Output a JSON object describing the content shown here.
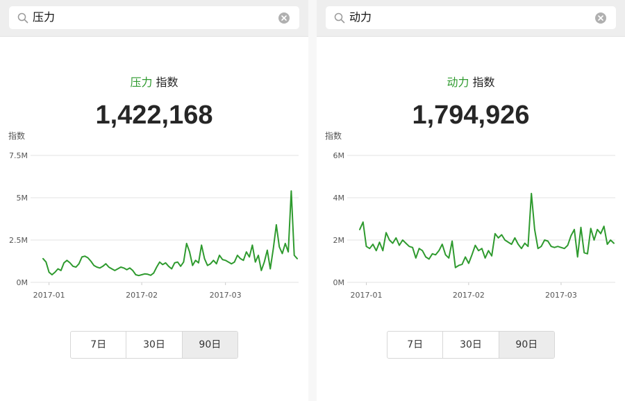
{
  "panels": [
    {
      "search": {
        "query": "压力"
      },
      "title": {
        "keyword": "压力",
        "suffix": " 指数"
      },
      "value": "1,422,168",
      "tabs": [
        {
          "label": "7日",
          "active": false
        },
        {
          "label": "30日",
          "active": false
        },
        {
          "label": "90日",
          "active": true
        }
      ]
    },
    {
      "search": {
        "query": "动力"
      },
      "title": {
        "keyword": "动力",
        "suffix": " 指数"
      },
      "value": "1,794,926",
      "tabs": [
        {
          "label": "7日",
          "active": false
        },
        {
          "label": "30日",
          "active": false
        },
        {
          "label": "90日",
          "active": true
        }
      ]
    }
  ],
  "colors": {
    "line": "#2e9a2e",
    "keyword": "#2e9a2e",
    "grid": "#e3e3e3",
    "axis_text": "#555555"
  },
  "chart_data": [
    {
      "type": "line",
      "ylabel": "指数",
      "ylim": [
        0,
        7500000
      ],
      "yticks": [
        0,
        2500000,
        5000000,
        7500000
      ],
      "yticklabels": [
        "0M",
        "2.5M",
        "5M",
        "7.5M"
      ],
      "xticklabels": [
        {
          "index": 2,
          "label": "2017-01"
        },
        {
          "index": 33,
          "label": "2017-02"
        },
        {
          "index": 61,
          "label": "2017-03"
        }
      ],
      "series": [
        {
          "values": [
            1400000,
            1200000,
            600000,
            450000,
            600000,
            800000,
            700000,
            1150000,
            1300000,
            1150000,
            950000,
            900000,
            1100000,
            1500000,
            1550000,
            1450000,
            1250000,
            1000000,
            900000,
            850000,
            950000,
            1100000,
            900000,
            800000,
            700000,
            800000,
            900000,
            850000,
            750000,
            850000,
            700000,
            450000,
            400000,
            450000,
            500000,
            480000,
            420000,
            550000,
            900000,
            1200000,
            1050000,
            1150000,
            950000,
            800000,
            1150000,
            1200000,
            950000,
            1200000,
            2300000,
            1800000,
            1000000,
            1300000,
            1150000,
            2200000,
            1400000,
            1000000,
            1100000,
            1300000,
            1100000,
            1600000,
            1350000,
            1300000,
            1200000,
            1100000,
            1200000,
            1600000,
            1400000,
            1300000,
            1800000,
            1500000,
            2200000,
            1200000,
            1600000,
            700000,
            1200000,
            1900000,
            800000,
            2000000,
            3400000,
            2100000,
            1700000,
            2300000,
            1800000,
            5400000,
            1600000,
            1400000
          ]
        }
      ]
    },
    {
      "type": "line",
      "ylabel": "指数",
      "ylim": [
        0,
        6000000
      ],
      "yticks": [
        0,
        2000000,
        4000000,
        6000000
      ],
      "yticklabels": [
        "0M",
        "2M",
        "4M",
        "6M"
      ],
      "xticklabels": [
        {
          "index": 2,
          "label": "2017-01"
        },
        {
          "index": 33,
          "label": "2017-02"
        },
        {
          "index": 61,
          "label": "2017-03"
        }
      ],
      "series": [
        {
          "values": [
            2500000,
            2850000,
            1700000,
            1600000,
            1800000,
            1500000,
            1900000,
            1500000,
            2350000,
            2000000,
            1850000,
            2100000,
            1750000,
            2000000,
            1850000,
            1700000,
            1650000,
            1150000,
            1600000,
            1500000,
            1200000,
            1100000,
            1350000,
            1300000,
            1500000,
            1800000,
            1300000,
            1150000,
            1950000,
            700000,
            800000,
            850000,
            1200000,
            900000,
            1300000,
            1750000,
            1500000,
            1600000,
            1150000,
            1500000,
            1250000,
            2300000,
            2100000,
            2250000,
            2000000,
            1900000,
            1800000,
            2100000,
            1800000,
            1600000,
            1850000,
            1700000,
            4200000,
            2500000,
            1600000,
            1700000,
            2000000,
            1950000,
            1700000,
            1650000,
            1700000,
            1650000,
            1600000,
            1750000,
            2200000,
            2500000,
            1200000,
            2600000,
            1400000,
            1350000,
            2550000,
            2000000,
            2500000,
            2300000,
            2650000,
            1800000,
            2000000,
            1850000
          ]
        }
      ]
    }
  ]
}
